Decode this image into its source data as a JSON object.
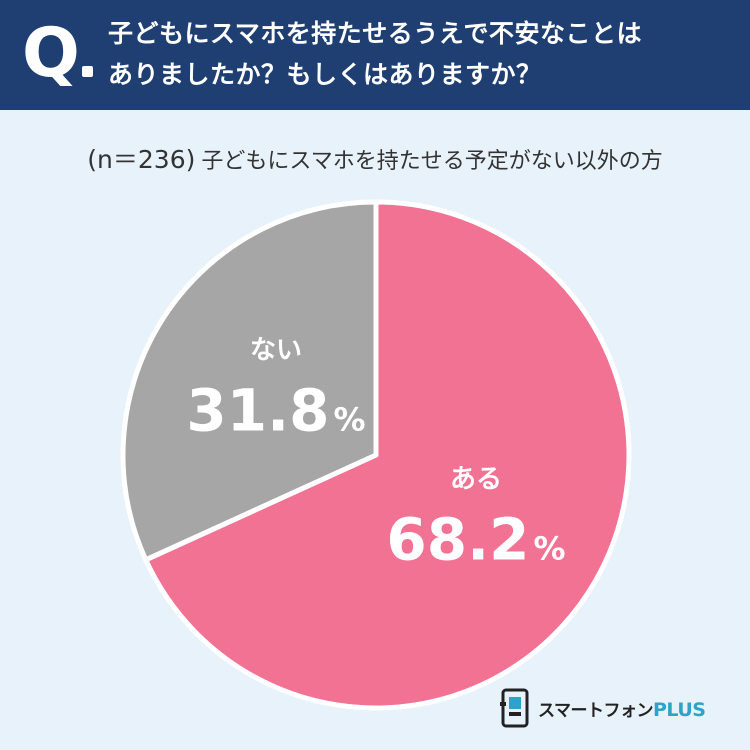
{
  "question": {
    "mark": "Q",
    "line1": "子どもにスマホを持たせるうえで不安なことは",
    "line2": "ありましたか？もしくはありますか？"
  },
  "subtitle": {
    "sample": "(n＝236)",
    "text": "子どもにスマホを持たせる予定がない以外の方"
  },
  "chart_data": {
    "type": "pie",
    "title": "",
    "slices": [
      {
        "label": "ある",
        "value": 68.2,
        "value_text": "68.2",
        "unit": "%",
        "color": "#f27294"
      },
      {
        "label": "ない",
        "value": 31.8,
        "value_text": "31.8",
        "unit": "%",
        "color": "#a6a6a6"
      }
    ],
    "start_angle": "12 o'clock",
    "direction": "clockwise",
    "legend": "none",
    "separator_color": "#ffffff"
  },
  "logo": {
    "text_main": "スマートフォン",
    "text_accent": "PLUS",
    "accent_color": "#2ea3c9",
    "icon": "phone-frame-icon"
  }
}
